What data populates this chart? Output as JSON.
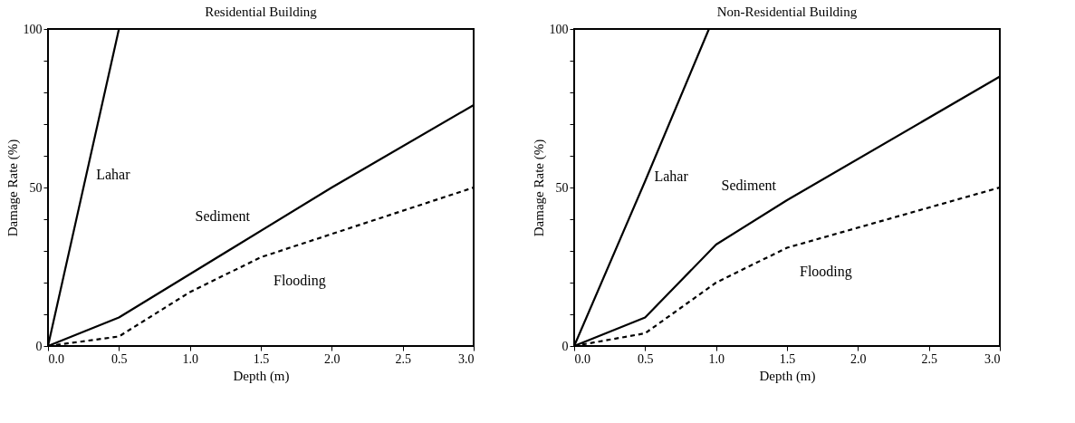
{
  "chart_data": [
    {
      "type": "line",
      "title": "Residential Building",
      "xlabel": "Depth (m)",
      "ylabel": "Damage Rate (%)",
      "xlim": [
        0,
        3
      ],
      "ylim": [
        0,
        100
      ],
      "xticks": [
        {
          "value": 0,
          "label": "0.0"
        },
        0.5,
        {
          "value": 1,
          "label": "1.0"
        },
        1.5,
        {
          "value": 2,
          "label": "2.0"
        },
        2.5,
        {
          "value": 3,
          "label": "3.0"
        }
      ],
      "yticks": [
        0,
        {
          "value": 10,
          "label": null
        },
        {
          "value": 20,
          "label": null
        },
        {
          "value": 30,
          "label": null
        },
        {
          "value": 40,
          "label": null
        },
        50,
        {
          "value": 60,
          "label": null
        },
        {
          "value": 70,
          "label": null
        },
        {
          "value": 80,
          "label": null
        },
        {
          "value": 90,
          "label": null
        },
        100
      ],
      "grid": false,
      "marker": "none",
      "series": [
        {
          "name": "Lahar",
          "color": "#000000",
          "line_style": "solid",
          "x": [
            0,
            0.5
          ],
          "values": [
            0,
            100
          ]
        },
        {
          "name": "Sediment",
          "color": "#000000",
          "line_style": "solid",
          "x": [
            0,
            0.5,
            2.0,
            3.0
          ],
          "values": [
            0,
            9,
            50,
            76
          ]
        },
        {
          "name": "Flooding",
          "color": "#000000",
          "line_style": "dashed",
          "x": [
            0,
            0.5,
            1.0,
            1.5,
            3.0
          ],
          "values": [
            0,
            3,
            17,
            28,
            50
          ]
        }
      ]
    },
    {
      "type": "line",
      "title": "Non-Residential Building",
      "xlabel": "Depth (m)",
      "ylabel": "Damage Rate (%)",
      "xlim": [
        0,
        3
      ],
      "ylim": [
        0,
        100
      ],
      "xticks": [
        {
          "value": 0,
          "label": "0.0"
        },
        0.5,
        {
          "value": 1,
          "label": "1.0"
        },
        1.5,
        {
          "value": 2,
          "label": "2.0"
        },
        2.5,
        {
          "value": 3,
          "label": "3.0"
        }
      ],
      "yticks": [
        0,
        {
          "value": 10,
          "label": null
        },
        {
          "value": 20,
          "label": null
        },
        {
          "value": 30,
          "label": null
        },
        {
          "value": 40,
          "label": null
        },
        50,
        {
          "value": 60,
          "label": null
        },
        {
          "value": 70,
          "label": null
        },
        {
          "value": 80,
          "label": null
        },
        {
          "value": 90,
          "label": null
        },
        100
      ],
      "grid": false,
      "marker": "none",
      "series": [
        {
          "name": "Lahar",
          "color": "#000000",
          "line_style": "solid",
          "x": [
            0,
            0.5,
            0.95
          ],
          "values": [
            0,
            52,
            100
          ]
        },
        {
          "name": "Sediment",
          "color": "#000000",
          "line_style": "solid",
          "x": [
            0,
            0.5,
            1.0,
            1.5,
            3.0
          ],
          "values": [
            0,
            9,
            32,
            46,
            85
          ]
        },
        {
          "name": "Flooding",
          "color": "#000000",
          "line_style": "dashed",
          "x": [
            0,
            0.5,
            1.0,
            1.5,
            3.0
          ],
          "values": [
            0,
            4,
            20,
            31,
            50
          ]
        }
      ]
    }
  ]
}
